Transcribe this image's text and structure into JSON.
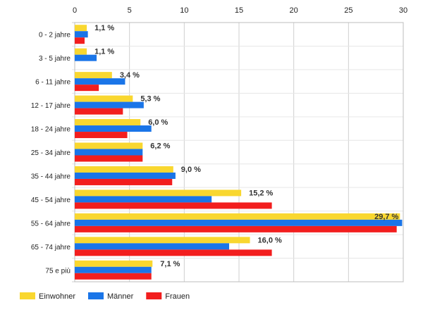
{
  "chart_data": {
    "type": "bar",
    "orientation": "horizontal",
    "categories": [
      "0 - 2 jahre",
      "3 - 5 jahre",
      "6 - 11 jahre",
      "12 - 17 jahre",
      "18 - 24 jahre",
      "25 - 34 jahre",
      "35 - 44 jahre",
      "45 - 54 jahre",
      "55 - 64 jahre",
      "65 - 74 jahre",
      "75 e più"
    ],
    "series": [
      {
        "name": "Einwohner",
        "color": "#f9d72f",
        "values": [
          1.1,
          1.1,
          3.4,
          5.3,
          6.0,
          6.2,
          9.0,
          15.2,
          29.7,
          16.0,
          7.1
        ]
      },
      {
        "name": "Männer",
        "color": "#1a75e8",
        "values": [
          1.2,
          2.0,
          4.6,
          6.3,
          7.0,
          6.2,
          9.2,
          12.5,
          29.9,
          14.1,
          7.0
        ]
      },
      {
        "name": "Frauen",
        "color": "#f21e1e",
        "values": [
          0.9,
          0.0,
          2.2,
          4.4,
          4.8,
          6.2,
          8.9,
          18.0,
          29.4,
          18.0,
          7.0
        ]
      }
    ],
    "data_labels": [
      "1,1 %",
      "1,1 %",
      "3,4 %",
      "5,3 %",
      "6,0 %",
      "6,2 %",
      "9,0 %",
      "15,2 %",
      "29,7 %",
      "16,0 %",
      "7,1 %"
    ],
    "x_ticks": [
      0,
      5,
      10,
      15,
      20,
      25,
      30
    ],
    "xlim": [
      0,
      30
    ],
    "grid": true,
    "legend_position": "bottom-left",
    "title": "",
    "xlabel": "",
    "ylabel": ""
  }
}
